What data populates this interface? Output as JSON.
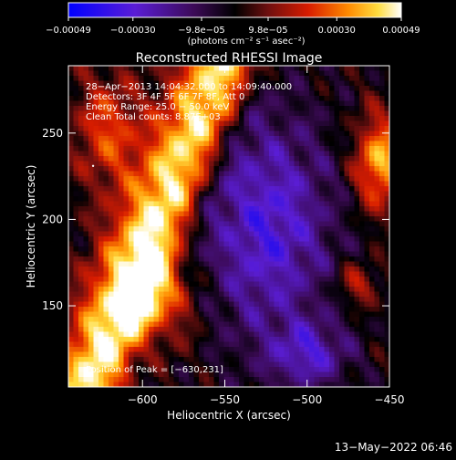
{
  "chart_data": {
    "type": "heatmap",
    "title": "Reconstructed RHESSI Image",
    "xlabel": "Heliocentric X (arcsec)",
    "ylabel": "Heliocentric Y (arcsec)",
    "xlim": [
      -645,
      -450
    ],
    "ylim": [
      103,
      289
    ],
    "x_ticks": [
      -600,
      -550,
      -500,
      -450
    ],
    "x_tick_labels": [
      "−600",
      "−550",
      "−500",
      "−450"
    ],
    "y_ticks": [
      150,
      200,
      250
    ],
    "y_tick_labels": [
      "150",
      "200",
      "250"
    ],
    "colorbar": {
      "range": [
        -0.00049,
        0.00049
      ],
      "ticks": [
        -0.00049,
        -0.0003,
        -9.8e-05,
        9.8e-05,
        0.0003,
        0.00049
      ],
      "tick_labels": [
        "−0.00049",
        "−0.00030",
        "−9.8e−05",
        "9.8e−05",
        "0.00030",
        "0.00049"
      ],
      "label": "(photons cm⁻² s⁻¹ asec⁻²)",
      "colormap": [
        "#0000ff",
        "#5a1dd5",
        "#3b0a55",
        "#000000",
        "#6e0f0f",
        "#d81c00",
        "#ff8a00",
        "#ffdd40",
        "#ffffff"
      ]
    },
    "info_lines": [
      "28−Apr−2013 14:04:32.000 to 14:09:40.000",
      "Detectors: 3F 4F 5F 6F 7F 8F, Att 0",
      "Energy Range: 25.0 − 50.0 keV",
      "Clean     Total counts: 8.87E+03"
    ],
    "peak_label": "Position of Peak = [−630,231]",
    "peak": [
      -630,
      231
    ],
    "grid": false,
    "timestamp": "13−May−2022 06:46"
  }
}
